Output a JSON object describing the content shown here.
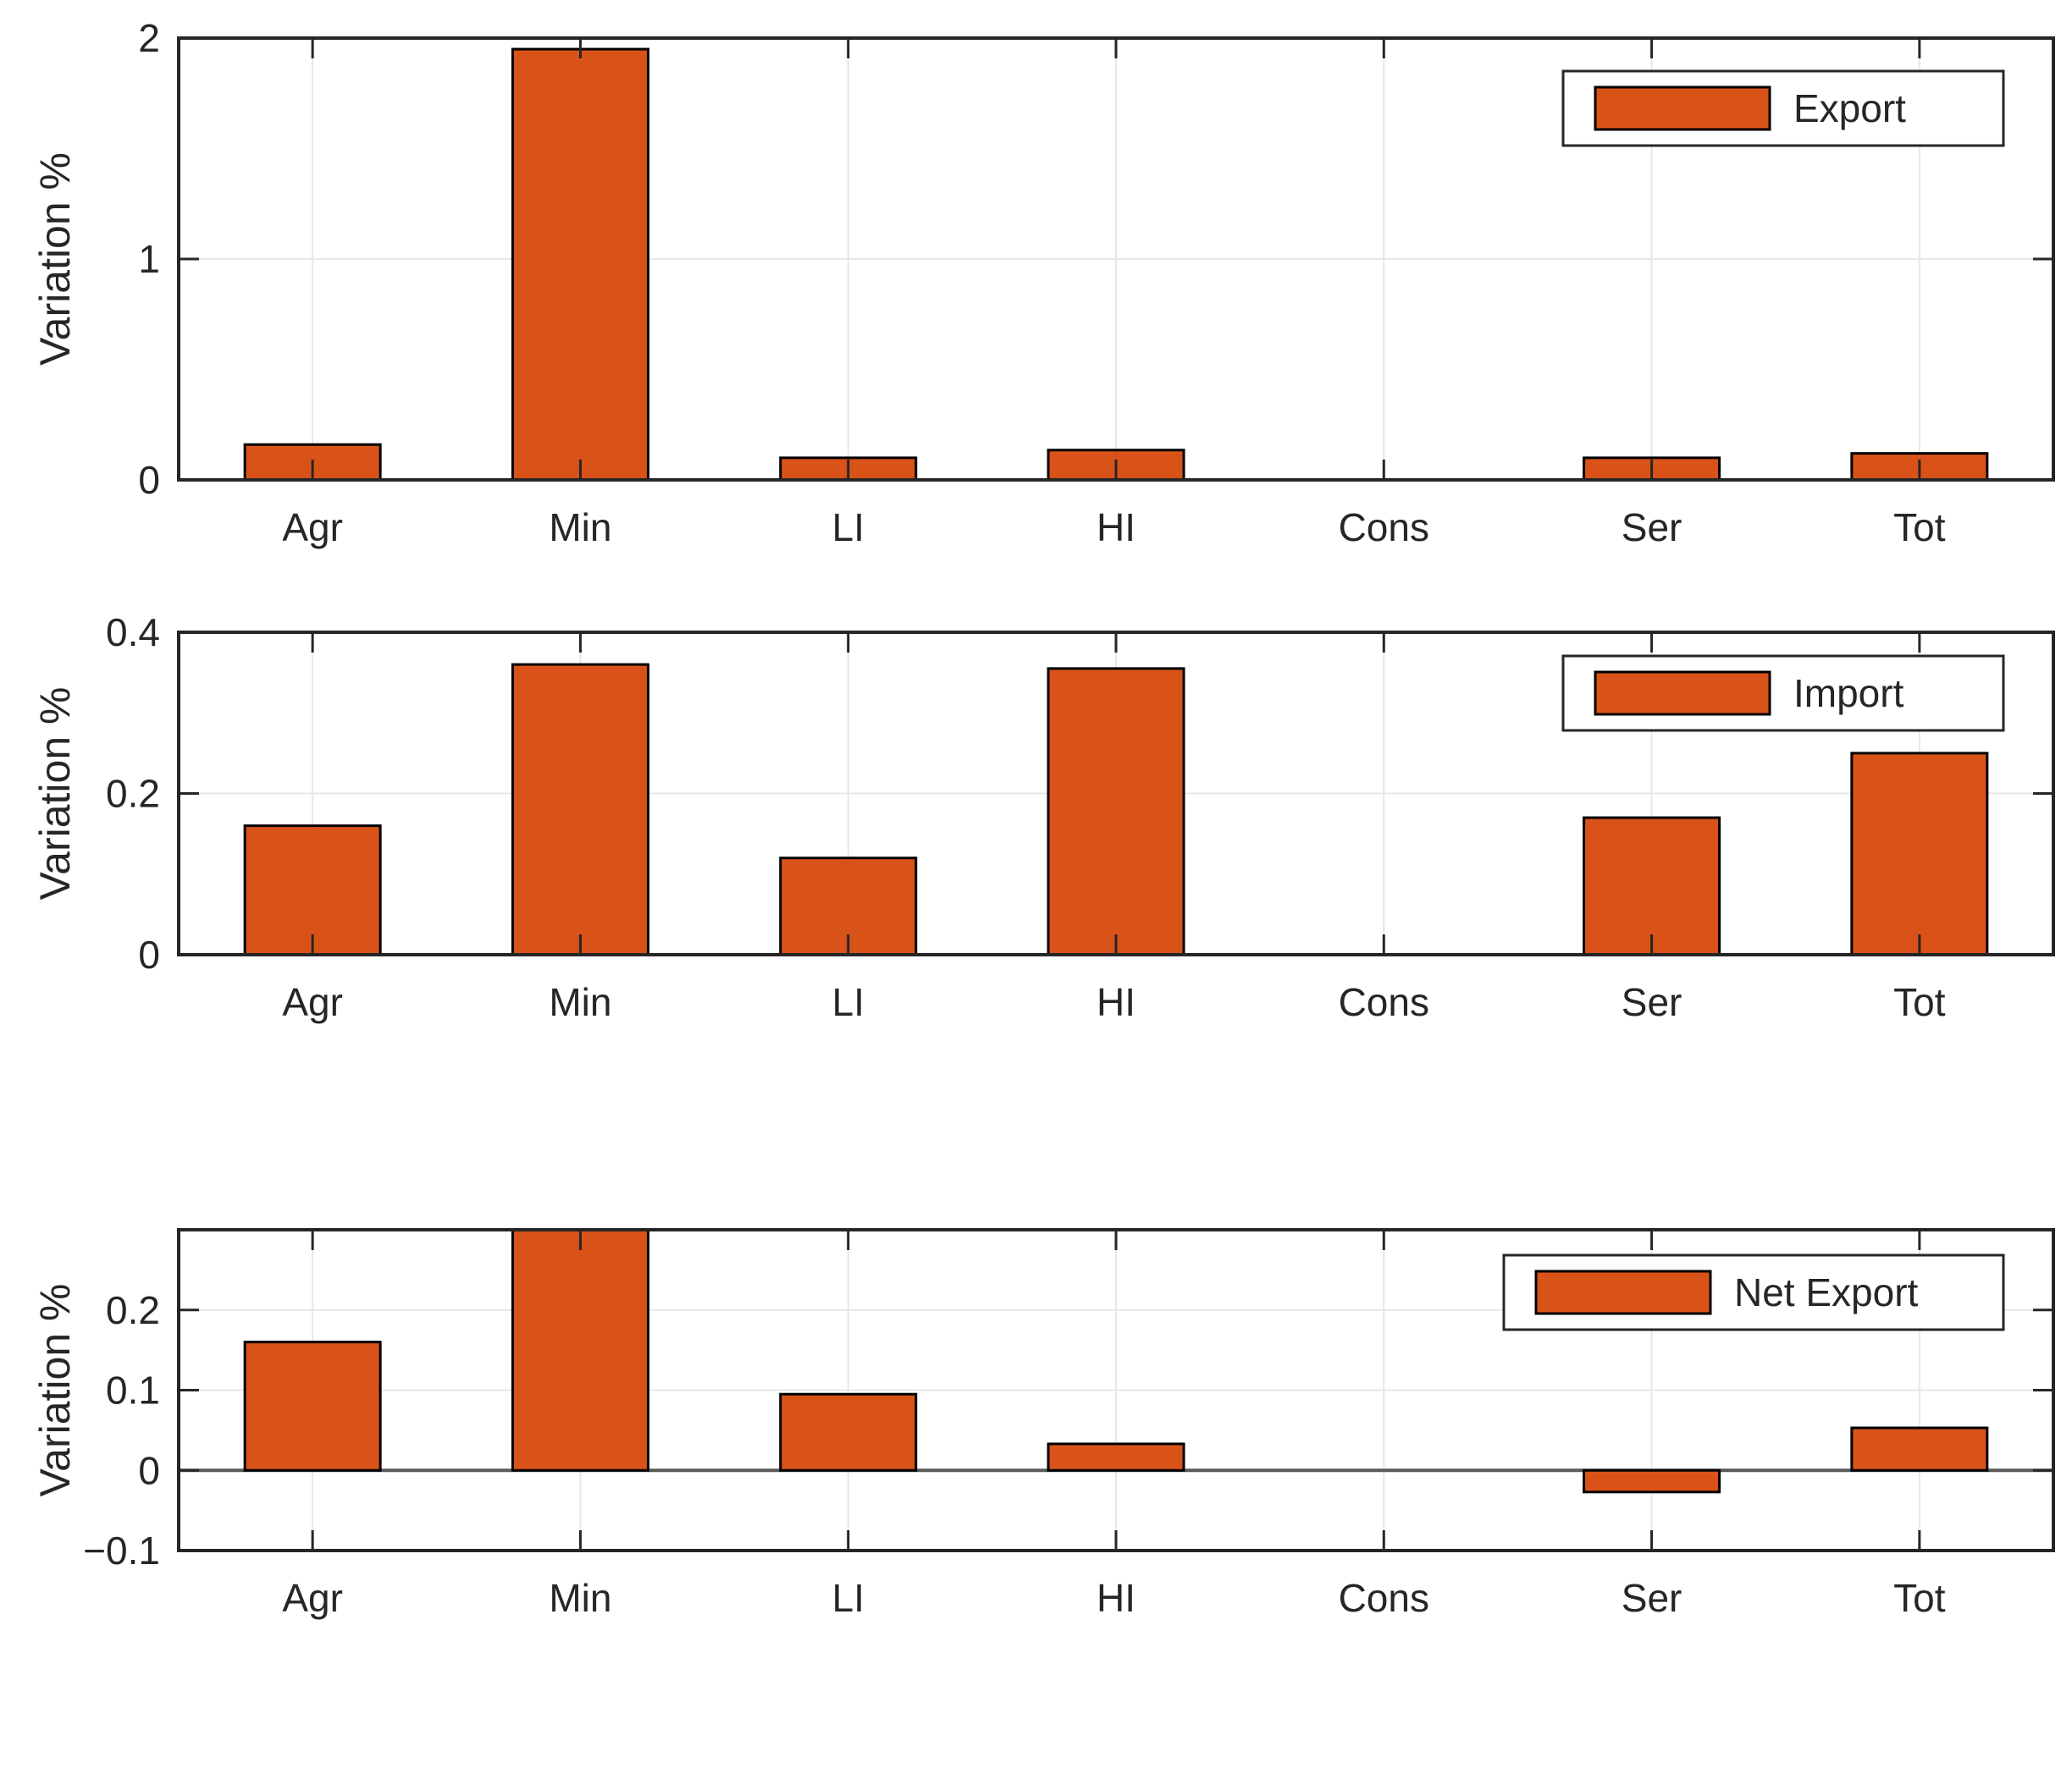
{
  "figure": {
    "background": "#ffffff",
    "description_labels": {
      "y_axis_label": "Variation %"
    }
  },
  "style": {
    "bar_color": "#d95319",
    "bar_edge_color": "#000000",
    "axis_color": "#262626",
    "grid_color": "#e7e7e7",
    "zero_line_color": "#5a5a5a",
    "text_color": "#262626",
    "legend_background": "#ffffff",
    "legend_border": "#262626"
  },
  "chart_data": [
    {
      "type": "bar",
      "title": "",
      "xlabel": "",
      "ylabel": "Variation %",
      "categories": [
        "Agr",
        "Min",
        "LI",
        "HI",
        "Cons",
        "Ser",
        "Tot"
      ],
      "values": [
        0.16,
        1.95,
        0.1,
        0.135,
        0,
        0.1,
        0.12
      ],
      "ylim": [
        0,
        2
      ],
      "yticks": [
        {
          "v": 0,
          "label": "0"
        },
        {
          "v": 1,
          "label": "1"
        },
        {
          "v": 2,
          "label": "2"
        }
      ],
      "grid": true,
      "legend": {
        "label": "Export",
        "position": "top-right"
      }
    },
    {
      "type": "bar",
      "title": "",
      "xlabel": "",
      "ylabel": "Variation %",
      "categories": [
        "Agr",
        "Min",
        "LI",
        "HI",
        "Cons",
        "Ser",
        "Tot"
      ],
      "values": [
        0.16,
        0.36,
        0.12,
        0.355,
        0,
        0.17,
        0.25
      ],
      "ylim": [
        0,
        0.4
      ],
      "yticks": [
        {
          "v": 0,
          "label": "0"
        },
        {
          "v": 0.2,
          "label": "0.2"
        },
        {
          "v": 0.4,
          "label": "0.4"
        }
      ],
      "grid": true,
      "legend": {
        "label": "Import",
        "position": "top-right"
      }
    },
    {
      "type": "bar",
      "title": "",
      "xlabel": "",
      "ylabel": "Variation %",
      "categories": [
        "Agr",
        "Min",
        "LI",
        "HI",
        "Cons",
        "Ser",
        "Tot"
      ],
      "values": [
        0.16,
        0.3,
        0.095,
        0.033,
        0,
        -0.027,
        0.053
      ],
      "ylim": [
        -0.1,
        0.3
      ],
      "yticks": [
        {
          "v": -0.1,
          "label": "−0.1"
        },
        {
          "v": 0,
          "label": "0"
        },
        {
          "v": 0.1,
          "label": "0.1"
        },
        {
          "v": 0.2,
          "label": "0.2"
        }
      ],
      "grid": true,
      "zero_line": true,
      "legend": {
        "label": "Net Export",
        "position": "top-right"
      }
    }
  ]
}
